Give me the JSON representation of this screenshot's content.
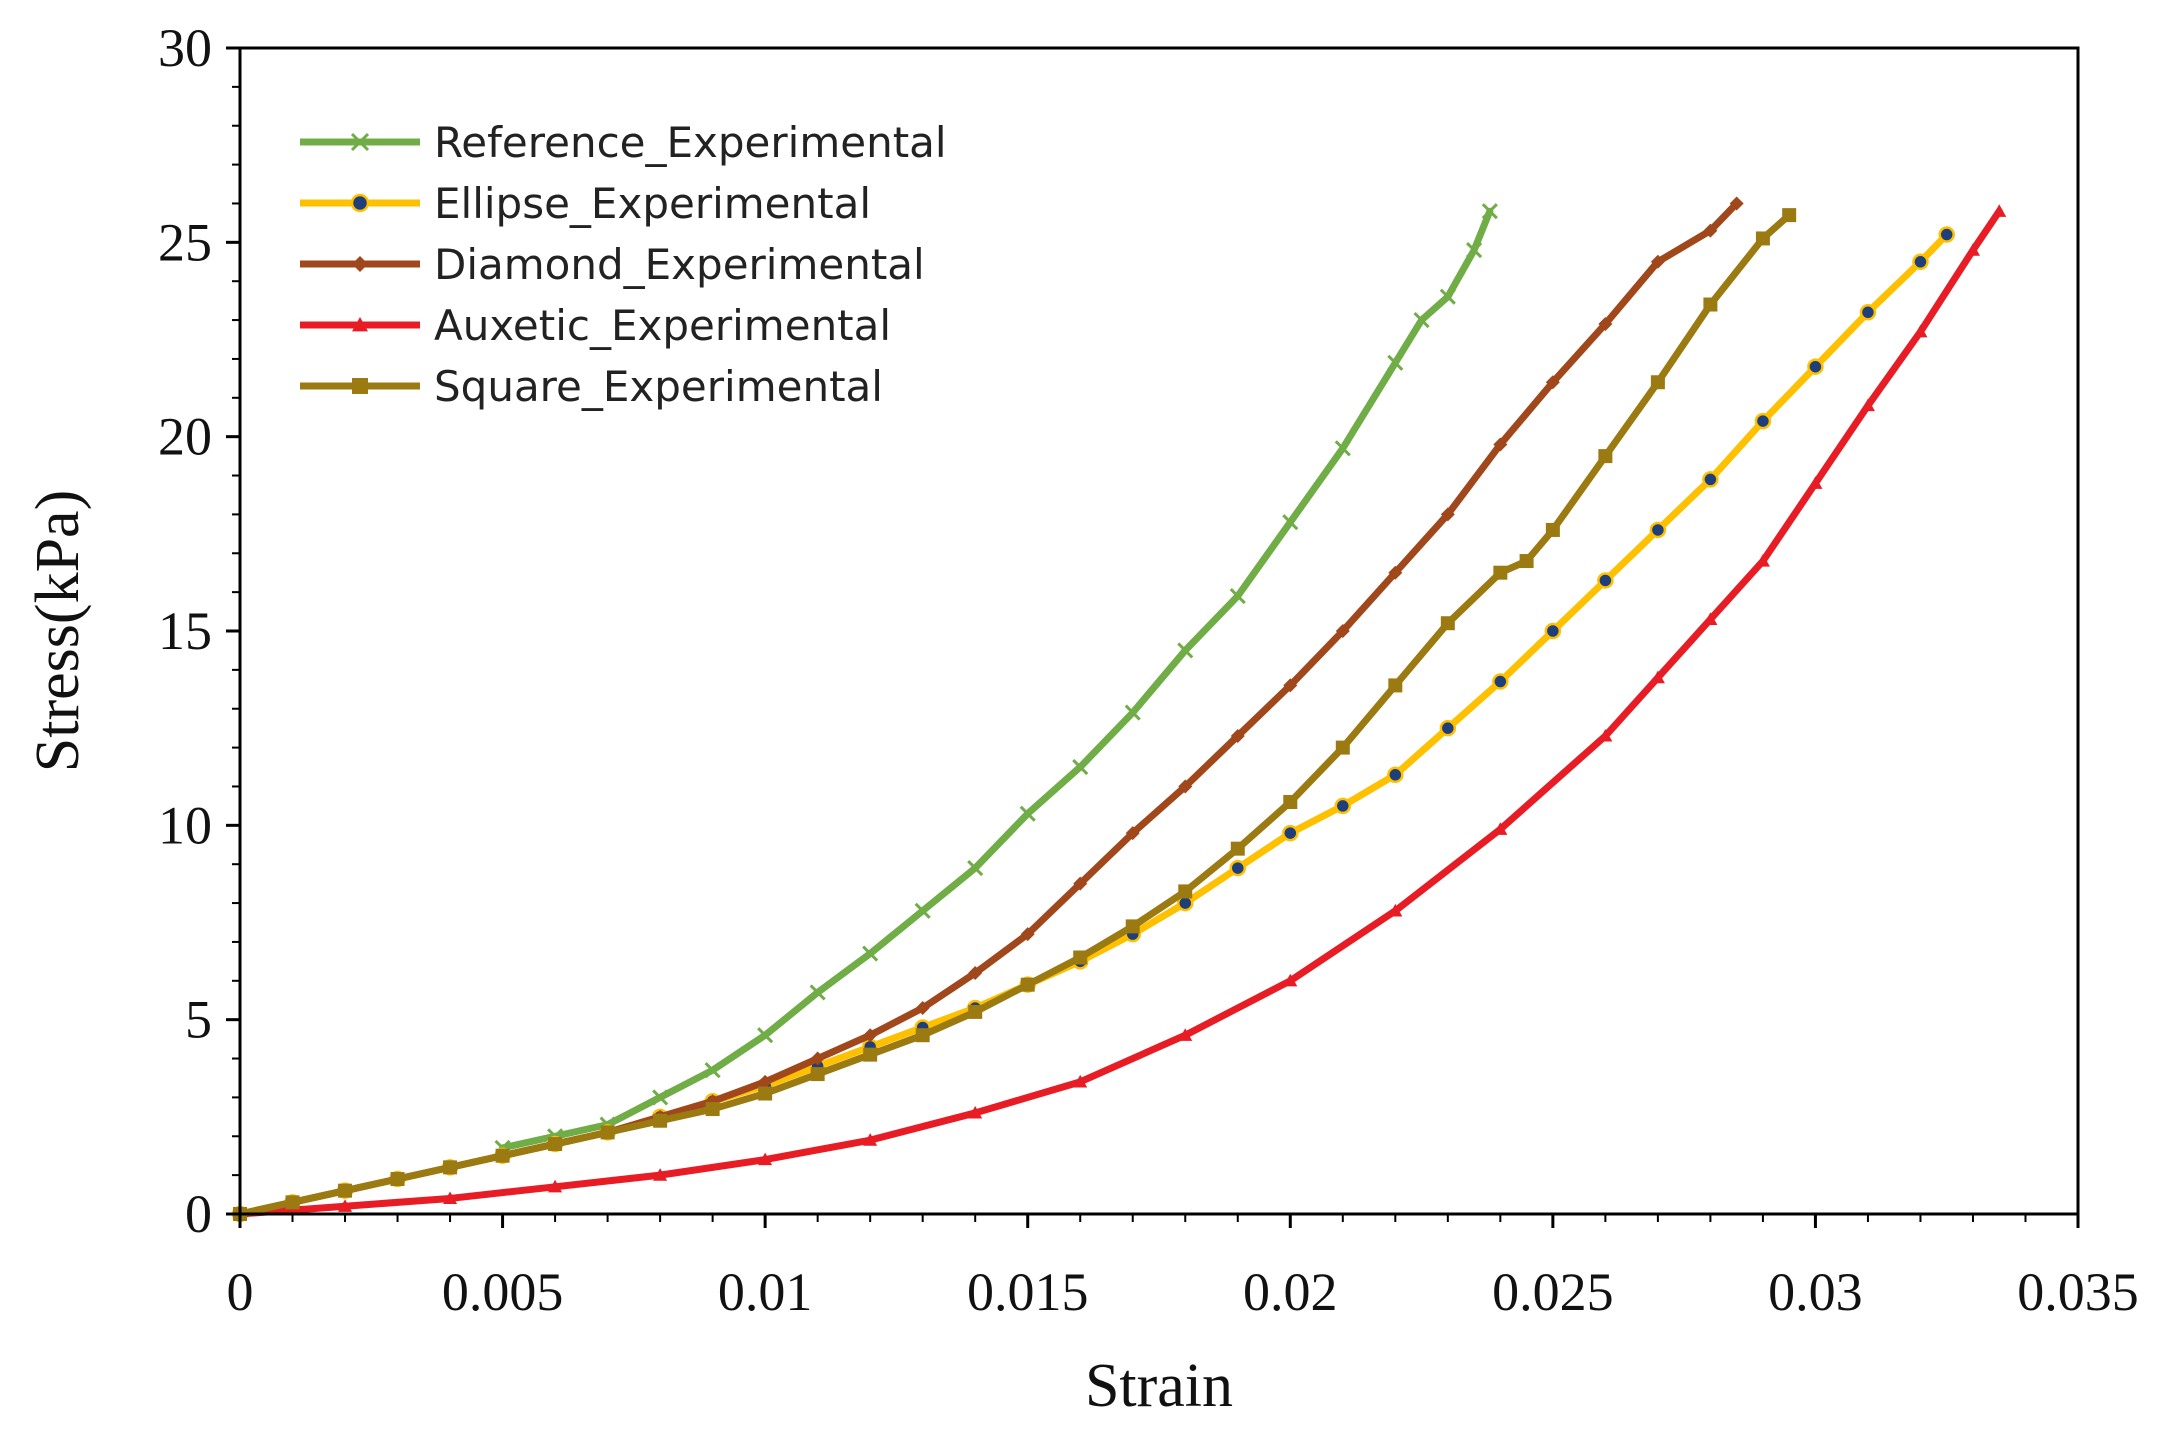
{
  "chart_data": {
    "type": "line",
    "title": "",
    "xlabel": "Strain",
    "ylabel": "Stress(kPa)",
    "xlim": [
      0,
      0.035
    ],
    "ylim": [
      0,
      30
    ],
    "x_ticks": [
      0,
      0.005,
      0.01,
      0.015,
      0.02,
      0.025,
      0.03,
      0.035
    ],
    "x_tick_labels": [
      "0",
      "0.005",
      "0.01",
      "0.015",
      "0.02",
      "0.025",
      "0.03",
      "0.035"
    ],
    "y_ticks": [
      0,
      5,
      10,
      15,
      20,
      25,
      30
    ],
    "y_tick_labels": [
      "0",
      "5",
      "10",
      "15",
      "20",
      "25",
      "30"
    ],
    "grid": false,
    "legend_position": "top-left",
    "series": [
      {
        "name": "Reference_Experimental",
        "color": "#70ad47",
        "marker": "x",
        "x": [
          0.005,
          0.006,
          0.007,
          0.008,
          0.009,
          0.01,
          0.011,
          0.012,
          0.013,
          0.014,
          0.015,
          0.016,
          0.017,
          0.018,
          0.019,
          0.02,
          0.021,
          0.022,
          0.0225,
          0.023,
          0.0235,
          0.0238
        ],
        "y": [
          1.7,
          2.0,
          2.3,
          3.0,
          3.7,
          4.6,
          5.7,
          6.7,
          7.8,
          8.9,
          10.3,
          11.5,
          12.9,
          14.5,
          15.9,
          17.8,
          19.7,
          21.9,
          23.0,
          23.6,
          24.8,
          25.8
        ]
      },
      {
        "name": "Ellipse_Experimental",
        "color": "#ffc000",
        "marker_fill": "#1f3f7a",
        "marker": "circle",
        "x": [
          0,
          0.001,
          0.002,
          0.003,
          0.004,
          0.005,
          0.006,
          0.007,
          0.008,
          0.009,
          0.01,
          0.011,
          0.012,
          0.013,
          0.014,
          0.015,
          0.016,
          0.017,
          0.018,
          0.019,
          0.02,
          0.021,
          0.022,
          0.023,
          0.024,
          0.025,
          0.026,
          0.027,
          0.028,
          0.029,
          0.03,
          0.031,
          0.032,
          0.0325
        ],
        "y": [
          0,
          0.3,
          0.6,
          0.9,
          1.2,
          1.5,
          1.8,
          2.1,
          2.5,
          2.9,
          3.3,
          3.8,
          4.3,
          4.8,
          5.3,
          5.9,
          6.5,
          7.2,
          8.0,
          8.9,
          9.8,
          10.5,
          11.3,
          12.5,
          13.7,
          15.0,
          16.3,
          17.6,
          18.9,
          20.4,
          21.8,
          23.2,
          24.5,
          25.2
        ]
      },
      {
        "name": "Diamond_Experimental",
        "color": "#a0471b",
        "marker": "diamond",
        "x": [
          0,
          0.001,
          0.002,
          0.003,
          0.004,
          0.005,
          0.006,
          0.007,
          0.008,
          0.009,
          0.01,
          0.011,
          0.012,
          0.013,
          0.014,
          0.015,
          0.016,
          0.017,
          0.018,
          0.019,
          0.02,
          0.021,
          0.022,
          0.023,
          0.024,
          0.025,
          0.026,
          0.027,
          0.028,
          0.0285
        ],
        "y": [
          0,
          0.3,
          0.6,
          0.9,
          1.2,
          1.5,
          1.8,
          2.1,
          2.5,
          2.9,
          3.4,
          4.0,
          4.6,
          5.3,
          6.2,
          7.2,
          8.5,
          9.8,
          11.0,
          12.3,
          13.6,
          15.0,
          16.5,
          18.0,
          19.8,
          21.4,
          22.9,
          24.5,
          25.3,
          26.0
        ]
      },
      {
        "name": "Auxetic_Experimental",
        "color": "#e81c24",
        "marker": "triangle",
        "x": [
          0,
          0.002,
          0.004,
          0.006,
          0.008,
          0.01,
          0.012,
          0.014,
          0.016,
          0.018,
          0.02,
          0.022,
          0.024,
          0.026,
          0.027,
          0.028,
          0.029,
          0.03,
          0.031,
          0.032,
          0.033,
          0.0335
        ],
        "y": [
          0,
          0.2,
          0.4,
          0.7,
          1.0,
          1.4,
          1.9,
          2.6,
          3.4,
          4.6,
          6.0,
          7.8,
          9.9,
          12.3,
          13.8,
          15.3,
          16.8,
          18.8,
          20.8,
          22.7,
          24.8,
          25.8
        ]
      },
      {
        "name": "Square_Experimental",
        "color": "#9c7a12",
        "marker": "square",
        "x": [
          0,
          0.001,
          0.002,
          0.003,
          0.004,
          0.005,
          0.006,
          0.007,
          0.008,
          0.009,
          0.01,
          0.011,
          0.012,
          0.013,
          0.014,
          0.015,
          0.016,
          0.017,
          0.018,
          0.019,
          0.02,
          0.021,
          0.022,
          0.023,
          0.024,
          0.0245,
          0.025,
          0.026,
          0.027,
          0.028,
          0.029,
          0.0295
        ],
        "y": [
          0,
          0.3,
          0.6,
          0.9,
          1.2,
          1.5,
          1.8,
          2.1,
          2.4,
          2.7,
          3.1,
          3.6,
          4.1,
          4.6,
          5.2,
          5.9,
          6.6,
          7.4,
          8.3,
          9.4,
          10.6,
          12.0,
          13.6,
          15.2,
          16.5,
          16.8,
          17.6,
          19.5,
          21.4,
          23.4,
          25.1,
          25.7
        ]
      }
    ]
  }
}
